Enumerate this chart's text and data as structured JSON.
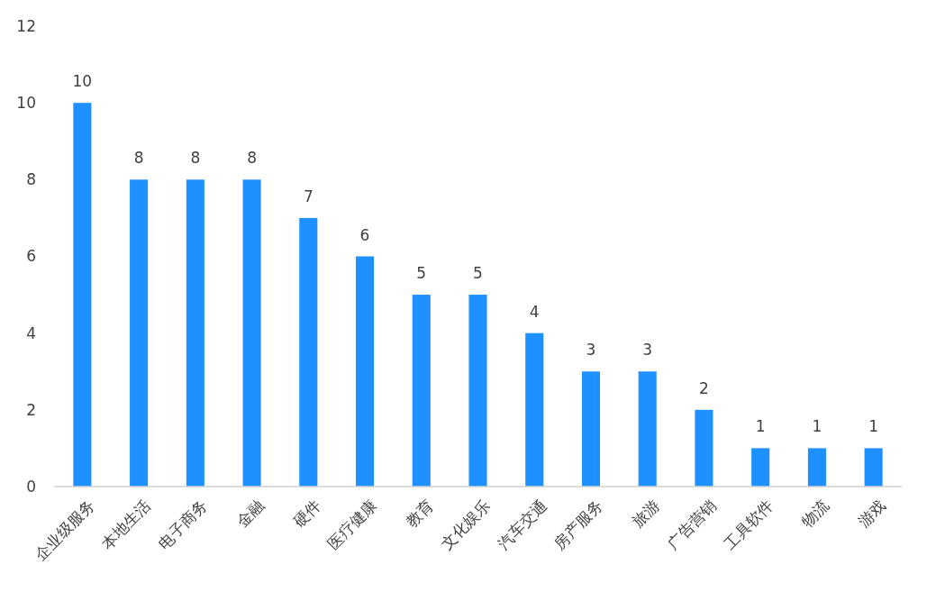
{
  "chart_data": {
    "type": "bar",
    "categories": [
      "企业级服务",
      "本地生活",
      "电子商务",
      "金融",
      "硬件",
      "医疗健康",
      "教育",
      "文化娱乐",
      "汽车交通",
      "房产服务",
      "旅游",
      "广告营销",
      "工具软件",
      "物流",
      "游戏"
    ],
    "values": [
      10,
      8,
      8,
      8,
      7,
      6,
      5,
      5,
      4,
      3,
      3,
      2,
      1,
      1,
      1
    ],
    "color": "#1e90ff",
    "ylim": [
      0,
      12
    ],
    "yticks": [
      0,
      2,
      4,
      6,
      8,
      10,
      12
    ],
    "data_labels": true
  }
}
